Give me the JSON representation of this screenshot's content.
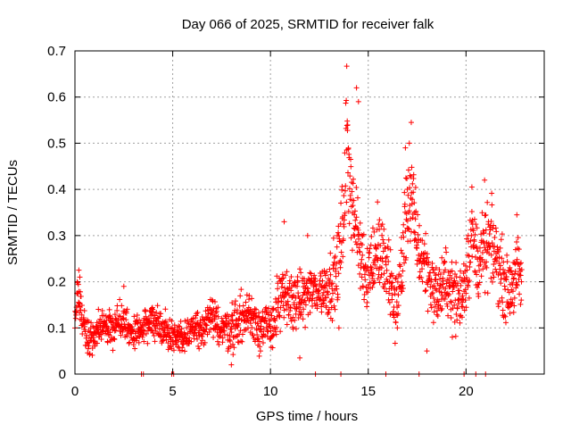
{
  "chart_data": {
    "type": "scatter",
    "title": "Day 066 of 2025, SRMTID for receiver falk",
    "xlabel": "GPS time / hours",
    "ylabel": "SRMTID / TECUs",
    "xlim": [
      0,
      24
    ],
    "ylim": [
      0,
      0.7
    ],
    "xticks": [
      {
        "value": 0,
        "label": "0"
      },
      {
        "value": 5,
        "label": "5"
      },
      {
        "value": 10,
        "label": "10"
      },
      {
        "value": 15,
        "label": "15"
      },
      {
        "value": 20,
        "label": "20"
      }
    ],
    "yticks": [
      {
        "value": 0,
        "label": "0"
      },
      {
        "value": 0.1,
        "label": "0.1"
      },
      {
        "value": 0.2,
        "label": "0.2"
      },
      {
        "value": 0.3,
        "label": "0.3"
      },
      {
        "value": 0.4,
        "label": "0.4"
      },
      {
        "value": 0.5,
        "label": "0.5"
      },
      {
        "value": 0.6,
        "label": "0.6"
      },
      {
        "value": 0.7,
        "label": "0.7"
      }
    ],
    "grid": true,
    "marker": "+",
    "color": "#ff0000",
    "series": [
      {
        "name": "SRMTID",
        "envelope": {
          "x": [
            0,
            0.15,
            0.3,
            0.6,
            1.0,
            1.5,
            2.0,
            2.5,
            3.0,
            3.5,
            4.0,
            4.5,
            5.0,
            5.5,
            6.0,
            6.5,
            7.0,
            7.5,
            8.0,
            8.5,
            9.0,
            9.5,
            10.0,
            10.5,
            11.0,
            11.5,
            12.0,
            12.5,
            13.0,
            13.4,
            13.7,
            13.9,
            14.1,
            14.3,
            14.6,
            14.9,
            15.2,
            15.5,
            15.8,
            16.1,
            16.4,
            16.7,
            17.0,
            17.3,
            17.6,
            17.9,
            18.2,
            18.5,
            18.8,
            19.1,
            19.4,
            19.7,
            20.0,
            20.3,
            20.6,
            20.9,
            21.2,
            21.5,
            21.8,
            22.1,
            22.4,
            22.7,
            22.85
          ],
          "mean": [
            0.1,
            0.19,
            0.14,
            0.09,
            0.08,
            0.1,
            0.1,
            0.12,
            0.08,
            0.1,
            0.12,
            0.1,
            0.08,
            0.08,
            0.1,
            0.1,
            0.12,
            0.1,
            0.1,
            0.12,
            0.13,
            0.1,
            0.1,
            0.16,
            0.16,
            0.16,
            0.18,
            0.18,
            0.19,
            0.22,
            0.32,
            0.5,
            0.42,
            0.33,
            0.26,
            0.22,
            0.24,
            0.28,
            0.24,
            0.2,
            0.14,
            0.22,
            0.38,
            0.35,
            0.26,
            0.24,
            0.2,
            0.17,
            0.19,
            0.2,
            0.17,
            0.16,
            0.22,
            0.3,
            0.24,
            0.26,
            0.28,
            0.26,
            0.22,
            0.18,
            0.2,
            0.22,
            0.2
          ],
          "spread": [
            0.02,
            0.03,
            0.03,
            0.03,
            0.03,
            0.03,
            0.03,
            0.03,
            0.03,
            0.03,
            0.03,
            0.03,
            0.025,
            0.025,
            0.025,
            0.025,
            0.03,
            0.03,
            0.04,
            0.04,
            0.04,
            0.04,
            0.04,
            0.05,
            0.05,
            0.04,
            0.04,
            0.04,
            0.05,
            0.06,
            0.08,
            0.1,
            0.09,
            0.07,
            0.06,
            0.06,
            0.06,
            0.07,
            0.06,
            0.06,
            0.06,
            0.07,
            0.08,
            0.07,
            0.06,
            0.06,
            0.05,
            0.05,
            0.05,
            0.05,
            0.06,
            0.06,
            0.06,
            0.07,
            0.06,
            0.06,
            0.07,
            0.06,
            0.06,
            0.05,
            0.05,
            0.06,
            0.06
          ]
        },
        "points": [
          [
            0.2,
            0.225
          ],
          [
            0.25,
            0.21
          ],
          [
            13.9,
            0.667
          ],
          [
            14.4,
            0.62
          ],
          [
            14.5,
            0.59
          ],
          [
            17.2,
            0.545
          ],
          [
            17.1,
            0.5
          ],
          [
            16.9,
            0.49
          ],
          [
            20.95,
            0.42
          ],
          [
            20.3,
            0.405
          ],
          [
            10.7,
            0.33
          ],
          [
            11.9,
            0.3
          ],
          [
            22.6,
            0.345
          ],
          [
            19.3,
            0.08
          ],
          [
            13.5,
            0.1
          ],
          [
            3.4,
            0.0
          ],
          [
            3.5,
            0.0
          ],
          [
            4.95,
            0.0
          ],
          [
            5.05,
            0.0
          ],
          [
            11.5,
            0.035
          ],
          [
            12.3,
            0.0
          ],
          [
            13.6,
            0.0
          ],
          [
            15.9,
            0.0
          ],
          [
            19.9,
            0.0
          ],
          [
            20.5,
            0.0
          ],
          [
            17.6,
            0.0
          ],
          [
            21.0,
            0.0
          ],
          [
            18.0,
            0.05
          ],
          [
            8.0,
            0.02
          ],
          [
            2.5,
            0.19
          ]
        ],
        "sample_interval_hours": 0.0125
      }
    ]
  }
}
